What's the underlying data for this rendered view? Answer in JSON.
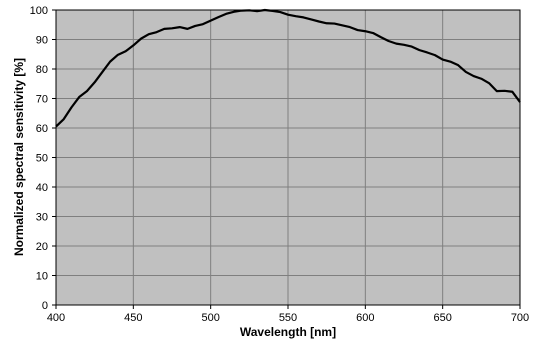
{
  "chart_data": {
    "type": "line",
    "title": "",
    "xlabel": "Wavelength [nm]",
    "ylabel": "Normalized  spectral sensitivity [%]",
    "xlim": [
      400,
      700
    ],
    "ylim": [
      0,
      100
    ],
    "x_ticks": [
      400,
      450,
      500,
      550,
      600,
      650,
      700
    ],
    "y_ticks": [
      0,
      10,
      20,
      30,
      40,
      50,
      60,
      70,
      80,
      90,
      100
    ],
    "grid": true,
    "legend": "none",
    "colors": {
      "plot_background": "#c0c0c0",
      "line": "#000000",
      "grid": "#7f7f7f",
      "page": "#ffffff"
    },
    "series": [
      {
        "x": [
          400,
          405,
          410,
          415,
          420,
          425,
          430,
          435,
          440,
          445,
          450,
          455,
          460,
          465,
          470,
          475,
          480,
          485,
          490,
          495,
          500,
          505,
          510,
          515,
          520,
          525,
          530,
          535,
          540,
          545,
          550,
          555,
          560,
          565,
          570,
          575,
          580,
          585,
          590,
          595,
          600,
          605,
          610,
          615,
          620,
          625,
          630,
          635,
          640,
          645,
          650,
          655,
          660,
          665,
          670,
          675,
          680,
          685,
          690,
          695,
          700
        ],
        "y": [
          60.5,
          63,
          67,
          70.5,
          72.5,
          75.5,
          79,
          82.5,
          84.8,
          86,
          88,
          90.3,
          91.8,
          92.5,
          93.6,
          93.8,
          94.2,
          93.6,
          94.6,
          95.2,
          96.4,
          97.6,
          98.7,
          99.4,
          99.8,
          99.9,
          99.6,
          100,
          99.7,
          99.3,
          98.4,
          97.9,
          97.5,
          96.8,
          96.1,
          95.5,
          95.4,
          94.8,
          94.2,
          93.2,
          92.8,
          92.2,
          90.8,
          89.5,
          88.6,
          88.2,
          87.6,
          86.4,
          85.6,
          84.7,
          83.2,
          82.5,
          81.3,
          79,
          77.6,
          76.7,
          75.2,
          72.5,
          72.6,
          72.3,
          68.8
        ]
      }
    ]
  }
}
